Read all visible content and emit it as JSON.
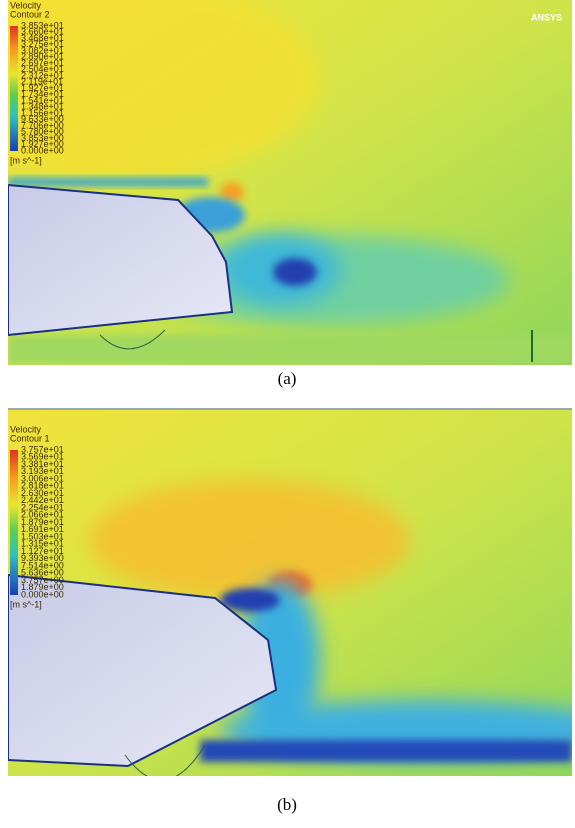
{
  "panels": [
    {
      "legend": {
        "title": "Velocity",
        "subtitle": "Contour 2",
        "labels": [
          "3.853e+01",
          "3.660e+01",
          "3.468e+01",
          "3.275e+01",
          "3.082e+01",
          "2.890e+01",
          "2.697e+01",
          "2.504e+01",
          "2.312e+01",
          "2.119e+01",
          "1.927e+01",
          "1.734e+01",
          "1.541e+01",
          "1.348e+01",
          "1.156e+01",
          "9.633e+00",
          "7.706e+00",
          "5.780e+00",
          "3.853e+00",
          "1.927e+00",
          "0.000e+00"
        ],
        "unit": "[m s^-1]"
      },
      "logo": "ANSYS",
      "caption": "(a)"
    },
    {
      "legend": {
        "title": "Velocity",
        "subtitle": "Contour 1",
        "labels": [
          "3.757e+01",
          "3.569e+01",
          "3.381e+01",
          "3.193e+01",
          "3.006e+01",
          "2.818e+01",
          "2.630e+01",
          "2.442e+01",
          "2.254e+01",
          "2.066e+01",
          "1.879e+01",
          "1.691e+01",
          "1.503e+01",
          "1.315e+01",
          "1.127e+01",
          "9.393e+00",
          "7.514e+00",
          "5.636e+00",
          "3.757e+00",
          "1.879e+00",
          "0.000e+00"
        ],
        "unit": "[m s^-1]"
      },
      "caption": "(b)"
    }
  ]
}
